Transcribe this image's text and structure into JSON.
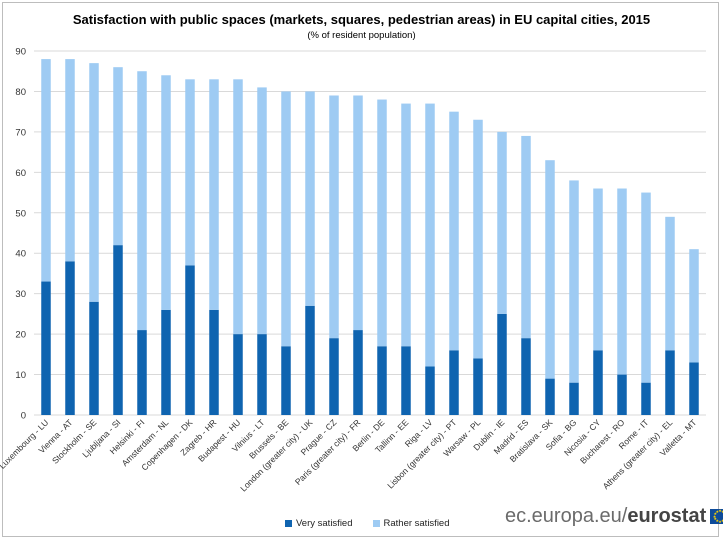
{
  "chart_data": {
    "type": "bar",
    "stacked": true,
    "title": "Satisfaction with public spaces (markets, squares, pedestrian areas) in EU capital cities, 2015",
    "subtitle": "(% of resident population)",
    "xlabel": "",
    "ylabel": "",
    "ylim": [
      0,
      90
    ],
    "yticks": [
      0,
      10,
      20,
      30,
      40,
      50,
      60,
      70,
      80,
      90
    ],
    "grid": true,
    "legend_position": "bottom",
    "categories": [
      "Luxembourg - LU",
      "Vienna - AT",
      "Stockholm - SE",
      "Ljubljana - SI",
      "Helsinki - FI",
      "Amsterdam - NL",
      "Copenhagen - DK",
      "Zagreb - HR",
      "Budapest - HU",
      "Vilnius - LT",
      "Brussels - BE",
      "London (greater city) - UK",
      "Prague - CZ",
      "Paris (greater city) - FR",
      "Berlin - DE",
      "Tallinn - EE",
      "Riga - LV",
      "Lisbon (greater city) - PT",
      "Warsaw - PL",
      "Dublin - IE",
      "Madrid - ES",
      "Bratislava - SK",
      "Sofia - BG",
      "Nicosia - CY",
      "Bucharest - RO",
      "Rome - IT",
      "Athens (greater city) - EL",
      "Valletta - MT"
    ],
    "series": [
      {
        "name": "Very satisfied",
        "color": "#0f64b0",
        "values": [
          33,
          38,
          28,
          42,
          21,
          26,
          37,
          26,
          20,
          20,
          17,
          27,
          19,
          21,
          17,
          17,
          12,
          16,
          14,
          25,
          19,
          9,
          8,
          16,
          10,
          8,
          16,
          13
        ]
      },
      {
        "name": "Rather satisfied",
        "color": "#9ecbf3",
        "values": [
          55,
          50,
          59,
          44,
          64,
          58,
          46,
          57,
          63,
          61,
          63,
          53,
          60,
          58,
          61,
          60,
          65,
          59,
          59,
          45,
          50,
          54,
          50,
          40,
          46,
          47,
          33,
          28
        ]
      }
    ]
  },
  "branding": {
    "url": "ec.europa.eu",
    "separator": "/",
    "name": "eurostat"
  }
}
